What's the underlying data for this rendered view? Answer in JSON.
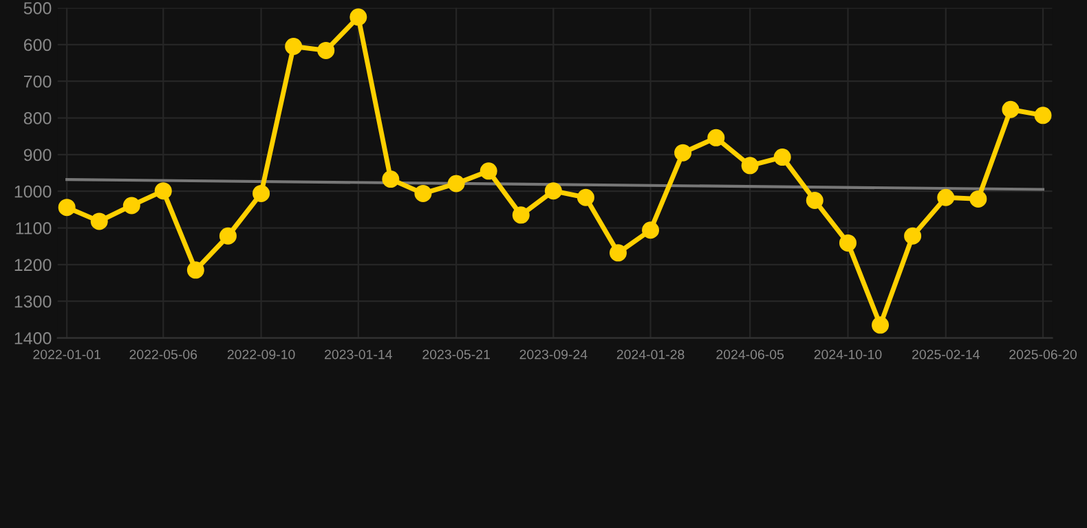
{
  "chart_data": {
    "type": "line",
    "x": [
      "2022-01-01",
      "2022-02-12",
      "2022-03-26",
      "2022-05-06",
      "2022-06-17",
      "2022-07-29",
      "2022-09-10",
      "2022-10-22",
      "2022-12-03",
      "2023-01-14",
      "2023-02-25",
      "2023-04-08",
      "2023-05-21",
      "2023-07-02",
      "2023-08-13",
      "2023-09-24",
      "2023-11-05",
      "2023-12-17",
      "2024-01-28",
      "2024-03-10",
      "2024-04-22",
      "2024-06-05",
      "2024-07-17",
      "2024-08-28",
      "2024-10-10",
      "2024-11-21",
      "2025-01-02",
      "2025-02-14",
      "2025-03-28",
      "2025-05-09",
      "2025-06-20"
    ],
    "series": [
      {
        "color": "#ffd000",
        "marker": "circle",
        "values": [
          1044,
          1082,
          1039,
          999,
          1215,
          1122,
          1006,
          605,
          616,
          525,
          967,
          1006,
          979,
          945,
          1065,
          999,
          1017,
          1168,
          1106,
          895,
          854,
          930,
          907,
          1025,
          1141,
          1365,
          1122,
          1017,
          1021,
          777,
          793
        ]
      },
      {
        "color": "#777777",
        "marker": "none",
        "x": [
          "2022-01-01",
          "2025-06-20"
        ],
        "values": [
          968,
          995
        ]
      }
    ],
    "xlim": [
      "2021-12-20",
      "2025-07-02"
    ],
    "xticks": [
      "2022-01-01",
      "2022-05-06",
      "2022-09-10",
      "2023-01-14",
      "2023-05-21",
      "2023-09-24",
      "2024-01-28",
      "2024-06-05",
      "2024-10-10",
      "2025-02-14",
      "2025-06-20"
    ],
    "ylim": [
      1400,
      500
    ],
    "yticks": [
      500,
      600,
      700,
      800,
      900,
      1000,
      1100,
      1200,
      1300,
      1400
    ],
    "grid": true,
    "line_style": "solid"
  }
}
